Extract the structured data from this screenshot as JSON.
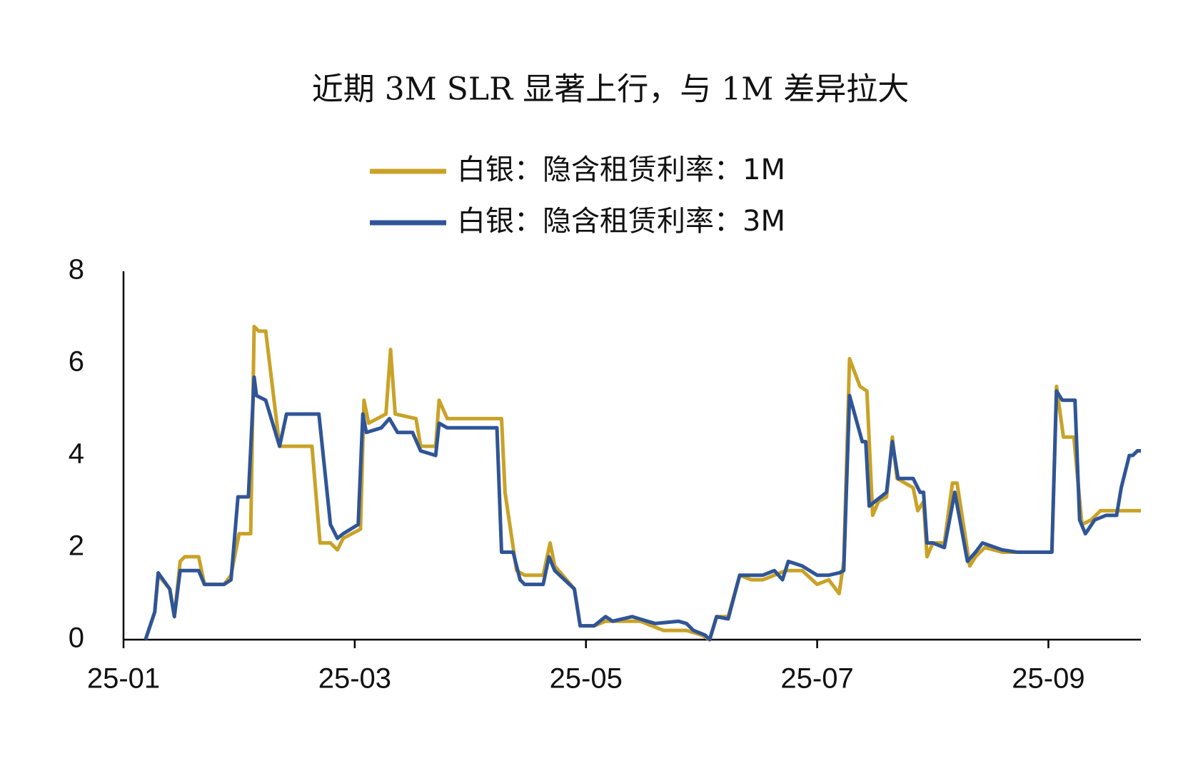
{
  "chart_data": {
    "type": "line",
    "title": "近期 3M SLR 显著上行，与 1M 差异拉大",
    "xlim": [
      0,
      8.8
    ],
    "xticks": [
      {
        "value": 0,
        "label": "25-01"
      },
      {
        "value": 2,
        "label": "25-03"
      },
      {
        "value": 4,
        "label": "25-05"
      },
      {
        "value": 6,
        "label": "25-07"
      },
      {
        "value": 8,
        "label": "25-09"
      }
    ],
    "ylim": [
      0,
      8
    ],
    "yticks": [
      0,
      2,
      4,
      6,
      8
    ],
    "grid": false,
    "legend": "top",
    "series": [
      {
        "name": "白银：隐含租赁利率：1M",
        "color": "#c9a227",
        "x": [
          0.19,
          0.27,
          0.3,
          0.4,
          0.44,
          0.49,
          0.53,
          0.65,
          0.7,
          0.77,
          0.87,
          0.93,
          1.0,
          1.1,
          1.13,
          1.17,
          1.23,
          1.35,
          1.41,
          1.63,
          1.7,
          1.79,
          1.85,
          1.9,
          2.05,
          2.08,
          2.12,
          2.27,
          2.31,
          2.35,
          2.53,
          2.57,
          2.7,
          2.73,
          2.8,
          3.23,
          3.27,
          3.3,
          3.4,
          3.47,
          3.63,
          3.69,
          3.73,
          3.9,
          3.95,
          4.07,
          4.17,
          4.33,
          4.47,
          4.57,
          4.67,
          4.8,
          4.87,
          5.0,
          5.07,
          5.13,
          5.23,
          5.33,
          5.43,
          5.53,
          5.63,
          5.73,
          5.87,
          6.0,
          6.1,
          6.19,
          6.23,
          6.28,
          6.37,
          6.43,
          6.48,
          6.53,
          6.6,
          6.65,
          6.69,
          6.83,
          6.87,
          6.92,
          6.95,
          7.0,
          7.1,
          7.17,
          7.21,
          7.32,
          7.37,
          7.45,
          7.6,
          7.73,
          7.87,
          8.03,
          8.07,
          8.13,
          8.22,
          8.29,
          8.37,
          8.45,
          8.57,
          8.67,
          8.8
        ],
        "values": [
          0,
          0.6,
          1.4,
          1.1,
          0.5,
          1.7,
          1.8,
          1.8,
          1.2,
          1.2,
          1.2,
          1.4,
          2.3,
          2.3,
          6.8,
          6.7,
          6.7,
          4.2,
          4.2,
          4.2,
          2.1,
          2.1,
          1.95,
          2.2,
          2.4,
          5.2,
          4.7,
          4.9,
          6.3,
          4.9,
          4.8,
          4.2,
          4.2,
          5.2,
          4.8,
          4.8,
          4.8,
          3.2,
          1.5,
          1.4,
          1.4,
          2.1,
          1.6,
          1.1,
          0.3,
          0.3,
          0.4,
          0.4,
          0.4,
          0.3,
          0.2,
          0.2,
          0.2,
          0.1,
          0,
          0.5,
          0.5,
          1.4,
          1.3,
          1.3,
          1.4,
          1.5,
          1.5,
          1.2,
          1.3,
          1.0,
          1.7,
          6.1,
          5.5,
          5.4,
          2.7,
          3.0,
          3.1,
          4.4,
          3.5,
          3.3,
          2.8,
          3.0,
          1.8,
          2.1,
          2.1,
          3.4,
          3.4,
          1.6,
          1.8,
          2.0,
          1.9,
          1.9,
          1.9,
          1.9,
          5.5,
          4.4,
          4.4,
          2.5,
          2.6,
          2.8,
          2.8,
          2.8,
          2.8
        ]
      },
      {
        "name": "白银：隐含租赁利率：3M",
        "color": "#2f5597",
        "x": [
          0.19,
          0.27,
          0.3,
          0.4,
          0.44,
          0.49,
          0.65,
          0.7,
          0.87,
          0.93,
          0.99,
          1.08,
          1.13,
          1.15,
          1.23,
          1.35,
          1.41,
          1.69,
          1.79,
          1.85,
          1.9,
          2.03,
          2.07,
          2.1,
          2.23,
          2.3,
          2.37,
          2.5,
          2.57,
          2.7,
          2.73,
          2.8,
          3.07,
          3.23,
          3.27,
          3.37,
          3.43,
          3.47,
          3.63,
          3.68,
          3.73,
          3.9,
          3.95,
          4.07,
          4.17,
          4.23,
          4.4,
          4.53,
          4.6,
          4.8,
          4.87,
          4.93,
          5.03,
          5.07,
          5.13,
          5.23,
          5.33,
          5.43,
          5.53,
          5.63,
          5.7,
          5.75,
          5.87,
          6.0,
          6.1,
          6.19,
          6.23,
          6.28,
          6.39,
          6.42,
          6.45,
          6.5,
          6.6,
          6.65,
          6.7,
          6.83,
          6.89,
          6.92,
          6.95,
          7.0,
          7.1,
          7.19,
          7.3,
          7.37,
          7.43,
          7.6,
          7.73,
          7.87,
          8.03,
          8.07,
          8.12,
          8.23,
          8.27,
          8.32,
          8.4,
          8.5,
          8.59,
          8.63,
          8.7,
          8.73,
          8.77,
          8.8
        ],
        "values": [
          0,
          0.6,
          1.45,
          1.1,
          0.5,
          1.5,
          1.5,
          1.2,
          1.2,
          1.3,
          3.1,
          3.1,
          5.7,
          5.3,
          5.2,
          4.2,
          4.9,
          4.9,
          2.5,
          2.2,
          2.3,
          2.5,
          4.9,
          4.5,
          4.6,
          4.8,
          4.5,
          4.5,
          4.1,
          4.0,
          4.7,
          4.6,
          4.6,
          4.6,
          1.9,
          1.9,
          1.3,
          1.2,
          1.2,
          1.8,
          1.5,
          1.1,
          0.3,
          0.3,
          0.5,
          0.4,
          0.5,
          0.4,
          0.35,
          0.4,
          0.35,
          0.2,
          0.1,
          0,
          0.5,
          0.45,
          1.4,
          1.4,
          1.4,
          1.5,
          1.3,
          1.7,
          1.6,
          1.4,
          1.4,
          1.45,
          1.5,
          5.3,
          4.3,
          4.3,
          2.9,
          3.0,
          3.2,
          4.3,
          3.5,
          3.5,
          3.2,
          3.2,
          2.1,
          2.1,
          2.0,
          3.2,
          1.7,
          1.9,
          2.1,
          1.95,
          1.9,
          1.9,
          1.9,
          5.4,
          5.2,
          5.2,
          2.6,
          2.3,
          2.6,
          2.7,
          2.7,
          3.3,
          4.0,
          4.0,
          4.1,
          4.1
        ]
      }
    ]
  }
}
